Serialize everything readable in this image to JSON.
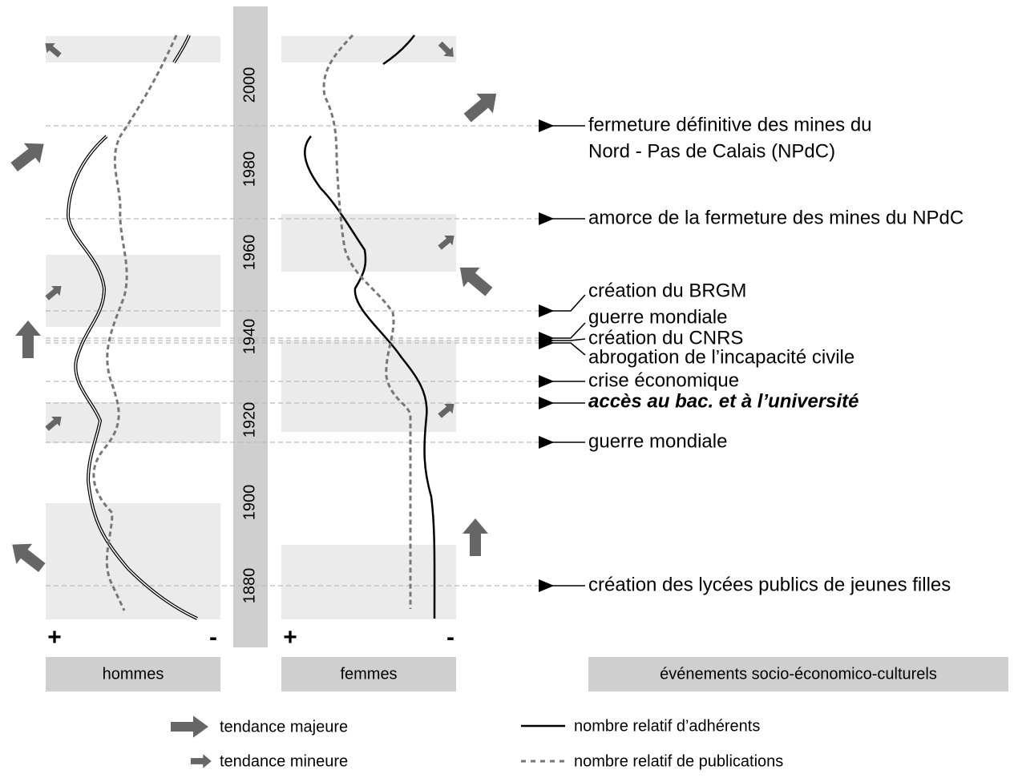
{
  "axis": {
    "ticks": [
      "2000",
      "1980",
      "1960",
      "1940",
      "1920",
      "1900",
      "1880"
    ]
  },
  "panels": {
    "men": {
      "label": "hommes",
      "plus": "+",
      "minus": "-"
    },
    "women": {
      "label": "femmes",
      "plus": "+",
      "minus": "-"
    },
    "events": {
      "label": "événements socio-économico-culturels"
    }
  },
  "events": [
    "fermeture définitive des mines du",
    "Nord - Pas de Calais (NPdC)",
    "amorce de la fermeture des mines du NPdC",
    "création du BRGM",
    "guerre mondiale",
    "création du CNRS",
    "abrogation de l’incapacité civile",
    "crise économique",
    "accès au bac. et à l’université",
    "guerre mondiale",
    "création des lycées publics de jeunes filles"
  ],
  "legend": {
    "major": "tendance majeure",
    "minor": "tendance mineure",
    "members": "nombre relatif d’adhérents",
    "publications": "nombre relatif de publications"
  }
}
